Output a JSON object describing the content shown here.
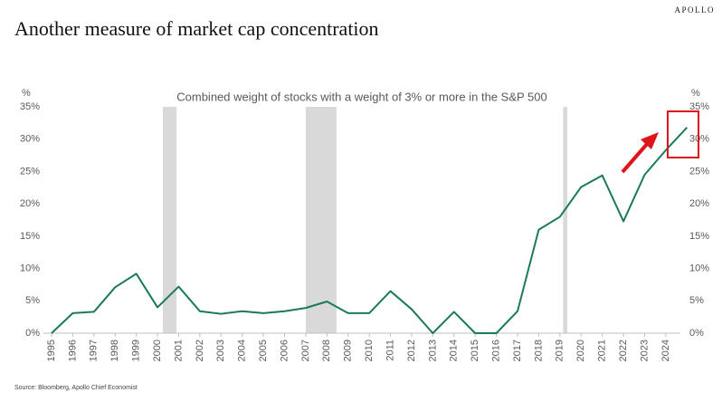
{
  "chart_data": {
    "type": "line",
    "brand": "APOLLO",
    "title": "Another measure of market cap concentration",
    "subtitle": "Combined weight of stocks with a weight of 3% or more in the S&P 500",
    "y_unit": "%",
    "y2_unit": "%",
    "source": "Source: Bloomberg, Apollo Chief Economist",
    "categories": [
      "1995",
      "1996",
      "1997",
      "1998",
      "1999",
      "2000",
      "2001",
      "2002",
      "2003",
      "2004",
      "2005",
      "2006",
      "2007",
      "2008",
      "2009",
      "2010",
      "2011",
      "2012",
      "2013",
      "2014",
      "2015",
      "2016",
      "2017",
      "2018",
      "2019",
      "2020",
      "2021",
      "2022",
      "2023",
      "2024",
      null
    ],
    "series": [
      {
        "name": "Combined weight",
        "color": "#1b7a57",
        "values": [
          0,
          3.1,
          3.3,
          7.1,
          9.2,
          4.0,
          7.2,
          3.4,
          3.0,
          3.4,
          3.1,
          3.4,
          3.9,
          4.9,
          3.1,
          3.1,
          6.5,
          3.7,
          0,
          3.3,
          0,
          0,
          3.4,
          16.0,
          18.0,
          22.6,
          24.4,
          17.3,
          24.5,
          28.3,
          31.8
        ]
      }
    ],
    "recessions": [
      [
        2000.25,
        2000.9
      ],
      [
        2007.0,
        2008.45
      ],
      [
        2019.15,
        2019.35
      ]
    ],
    "recession_color": "#d9d9d9",
    "ylim": [
      0,
      35
    ],
    "yticks": [
      {
        "value": 0,
        "label": "0%"
      },
      {
        "value": 5,
        "label": "5%"
      },
      {
        "value": 10,
        "label": "10%"
      },
      {
        "value": 15,
        "label": "15%"
      },
      {
        "value": 20,
        "label": "20%"
      },
      {
        "value": 25,
        "label": "25%"
      },
      {
        "value": 30,
        "label": "30%"
      },
      {
        "value": 35,
        "label": "35%"
      }
    ],
    "y2lim": [
      0,
      35
    ],
    "y2ticks": [
      {
        "value": 0,
        "label": "0%"
      },
      {
        "value": 5,
        "label": "5%"
      },
      {
        "value": 10,
        "label": "10%"
      },
      {
        "value": 15,
        "label": "15%"
      },
      {
        "value": 20,
        "label": "20%"
      },
      {
        "value": 25,
        "label": "25%"
      },
      {
        "value": 30,
        "label": "30%"
      },
      {
        "value": 35,
        "label": "35%"
      }
    ],
    "grid": false
  }
}
